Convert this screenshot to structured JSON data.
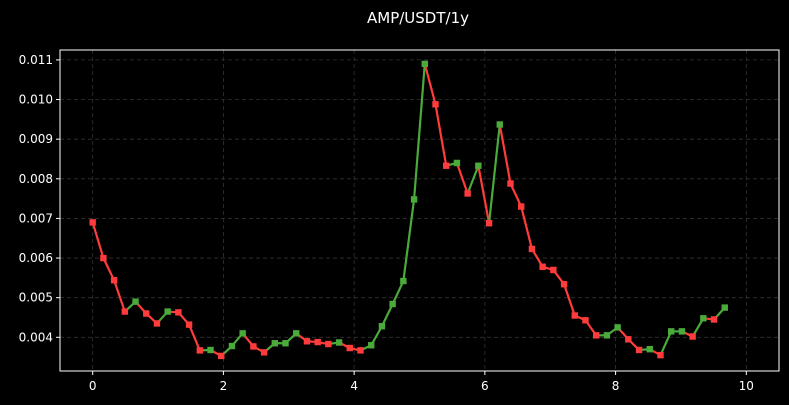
{
  "chart_data": {
    "type": "line",
    "title": "AMP/USDT/1y",
    "xlabel": "",
    "ylabel": "",
    "xlim": [
      -0.5,
      10.5
    ],
    "ylim": [
      0.00315,
      0.01125
    ],
    "xticks": [
      0,
      2,
      4,
      6,
      8,
      10
    ],
    "xtick_labels": [
      "0",
      "2",
      "4",
      "6",
      "8",
      "10"
    ],
    "yticks": [
      0.004,
      0.005,
      0.006,
      0.007,
      0.008,
      0.009,
      0.01,
      0.011
    ],
    "ytick_labels": [
      "0.004",
      "0.005",
      "0.006",
      "0.007",
      "0.008",
      "0.009",
      "0.010",
      "0.011"
    ],
    "grid": true,
    "colors": {
      "up": "#4aaa3a",
      "down": "#ff3b3b",
      "background": "#000000",
      "grid": "#333333",
      "axes": "#ffffff"
    },
    "x_step": 0.1639,
    "values": [
      0.0069,
      0.006,
      0.00544,
      0.00465,
      0.0049,
      0.0046,
      0.00435,
      0.00465,
      0.00463,
      0.00432,
      0.00367,
      0.00368,
      0.00353,
      0.00378,
      0.0041,
      0.00377,
      0.00362,
      0.00385,
      0.00385,
      0.0041,
      0.0039,
      0.00388,
      0.00383,
      0.00387,
      0.00373,
      0.00367,
      0.0038,
      0.00428,
      0.00484,
      0.00542,
      0.00748,
      0.0109,
      0.00988,
      0.00833,
      0.0084,
      0.00763,
      0.00833,
      0.00688,
      0.00937,
      0.00788,
      0.0073,
      0.00623,
      0.00578,
      0.0057,
      0.00534,
      0.00455,
      0.00443,
      0.00405,
      0.00405,
      0.00425,
      0.00395,
      0.00368,
      0.0037,
      0.00355,
      0.00415,
      0.00415,
      0.00402,
      0.00448,
      0.00445,
      0.00475
    ]
  }
}
